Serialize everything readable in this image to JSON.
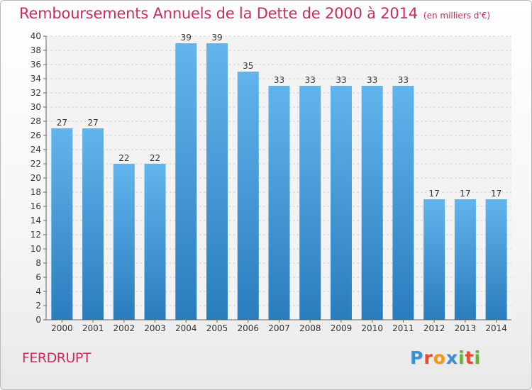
{
  "header": {
    "title": "Remboursements Annuels de la Dette de 2000 à 2014",
    "subtitle": "(en milliers d'€)"
  },
  "footer": {
    "commune": "FERDRUPT",
    "logo_text": "Proxiti"
  },
  "colors": {
    "title": "#cc2b5e",
    "bar_light": "#62b4ec",
    "bar_dark": "#2a7dbd",
    "logo": [
      "#3a8fd6",
      "#e84a2e",
      "#f29a1a",
      "#3a8fd6",
      "#64b43c",
      "#e84a2e",
      "#64b43c"
    ]
  },
  "chart_data": {
    "type": "bar",
    "title": "Remboursements Annuels de la Dette de 2000 à 2014",
    "subtitle": "(en milliers d'€)",
    "categories": [
      "2000",
      "2001",
      "2002",
      "2003",
      "2004",
      "2005",
      "2006",
      "2007",
      "2008",
      "2009",
      "2010",
      "2011",
      "2012",
      "2013",
      "2014"
    ],
    "values": [
      27,
      27,
      22,
      22,
      39,
      39,
      35,
      33,
      33,
      33,
      33,
      33,
      17,
      17,
      17
    ],
    "data_labels": [
      "27",
      "27",
      "22",
      "22",
      "39",
      "39",
      "35",
      "33",
      "33",
      "33",
      "33",
      "33",
      "17",
      "17",
      "17"
    ],
    "ylim": [
      0,
      40
    ],
    "yticks": [
      0,
      2,
      4,
      6,
      8,
      10,
      12,
      14,
      16,
      18,
      20,
      22,
      24,
      26,
      28,
      30,
      32,
      34,
      36,
      38,
      40
    ],
    "grid": true,
    "xlabel": "",
    "ylabel": ""
  }
}
